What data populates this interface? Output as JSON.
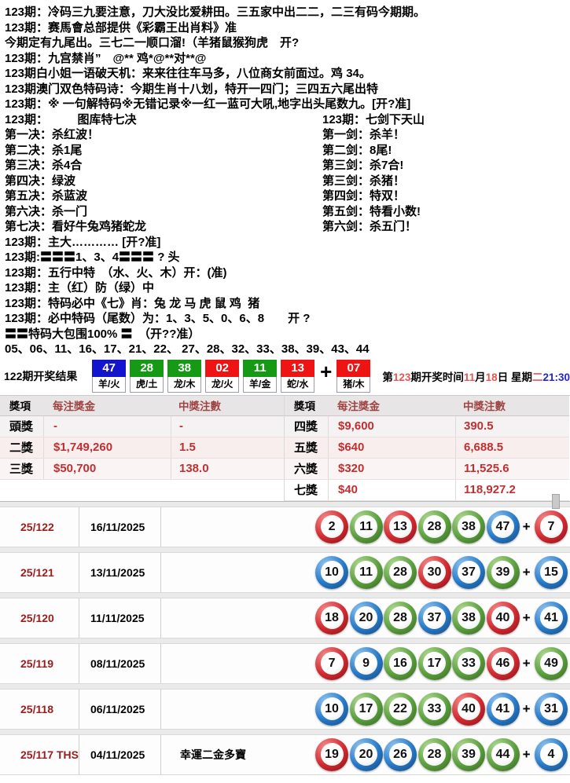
{
  "colors": {
    "box-blue": "#1414cf",
    "box-green": "#169a16",
    "box-red": "#ee1414",
    "ball-red": "#d02a30",
    "ball-green": "#5a9e3e",
    "ball-blue": "#2679c8",
    "accent-red": "#c03030",
    "dark-red": "#9b1c1c",
    "link-blue": "#2323dd",
    "hl-red": "#e85555"
  },
  "tips": {
    "lines_top": [
      "123期：冷码三九要注意，刀大没比爱耕田。三五家中出二二，二三有码今期期。",
      "123期：赛馬會总部提供《彩霸王出肖料》准",
      "今期定有九尾出。三七二一顺口溜!（羊猪鼠猴狗虎　开?",
      "123期：九宫禁肖”　@** 鸡*@**对**@",
      "123期白小姐一语破天机：来来往往车马多，八位商女前面过。鸡 34。",
      "123期澳门双色特码诗：今期生肖十八划，特开一四门；三四五六尾出特",
      "123期：※ 一句解特码※无错记录※一红一蓝可大吼,地字出头尾数九。[开?准]"
    ],
    "two_col": [
      {
        "left": "123期：　　　图库特七决",
        "right": "123期：七剑下天山"
      },
      {
        "left": "第一决：杀红波！",
        "right": "第一剑：杀羊！"
      },
      {
        "left": "第二决：杀1尾",
        "right": "第二剑：8尾!"
      },
      {
        "left": "第三决：杀4合",
        "right": "第三剑：杀7合!"
      },
      {
        "left": "第四决：绿波",
        "right": "第三剑：杀猪！"
      },
      {
        "left": "第五决：杀蓝波",
        "right": "第四剑：特双！"
      },
      {
        "left": "第六决：杀一门",
        "right": "第五剑：特看小数!"
      },
      {
        "left": "第七决：看好牛兔鸡猪蛇龙",
        "right": "第六剑：杀五门！"
      }
    ],
    "lines_bottom": [
      "123期：主大………… [开?准]",
      "123期:〓〓〓1、3、4〓〓〓 ? 头",
      "123期：五行中特　（水、火、木）开：(准)",
      "123期：主（红）防（绿）中",
      "123期：特码必中《七》肖：兔 龙 马 虎 鼠 鸡  猪",
      "123期：必中特码（尾数）为：1、3、5、0、6、8　　开 ?",
      "〓〓特码大包围100% 〓　（开??准）",
      "05、06、11、16、17、21、22、 27、28、32、33、38、39、43、44"
    ]
  },
  "result_bar": {
    "label": "122期开奖结果",
    "balls": [
      {
        "num": "47",
        "color": "blue",
        "info": "羊/火"
      },
      {
        "num": "28",
        "color": "green",
        "info": "虎/土"
      },
      {
        "num": "38",
        "color": "green",
        "info": "龙/木"
      },
      {
        "num": "02",
        "color": "red",
        "info": "龙/火"
      },
      {
        "num": "11",
        "color": "green",
        "info": "羊/金"
      },
      {
        "num": "13",
        "color": "red",
        "info": "蛇/水"
      }
    ],
    "plus": "+",
    "special": {
      "num": "07",
      "color": "red",
      "info": "猪/木"
    },
    "next_draw": [
      {
        "t": "第",
        "c": "k"
      },
      {
        "t": "123",
        "c": "r"
      },
      {
        "t": "期开奖时间",
        "c": "k"
      },
      {
        "t": "11",
        "c": "r"
      },
      {
        "t": "月",
        "c": "k"
      },
      {
        "t": "18",
        "c": "r"
      },
      {
        "t": "日 星期",
        "c": "k"
      },
      {
        "t": "二",
        "c": "r"
      },
      {
        "t": "21:30",
        "c": "b"
      }
    ]
  },
  "prize_tables": [
    {
      "headers": [
        "獎項",
        "每注獎金",
        "中獎注數"
      ],
      "rows": [
        {
          "tier": "頭獎",
          "amount": "-",
          "units": "-"
        },
        {
          "tier": "二獎",
          "amount": "$1,749,260",
          "units": "1.5"
        },
        {
          "tier": "三獎",
          "amount": "$50,700",
          "units": "138.0"
        }
      ]
    },
    {
      "headers": [
        "獎項",
        "每注獎金",
        "中獎注數"
      ],
      "rows": [
        {
          "tier": "四獎",
          "amount": "$9,600",
          "units": "390.5"
        },
        {
          "tier": "五獎",
          "amount": "$640",
          "units": "6,688.5"
        },
        {
          "tier": "六獎",
          "amount": "$320",
          "units": "11,525.6"
        },
        {
          "tier": "七獎",
          "amount": "$40",
          "units": "118,927.2"
        }
      ]
    }
  ],
  "history": {
    "plus": "+",
    "rows": [
      {
        "period": "25/122",
        "date": "16/11/2025",
        "note": "",
        "balls": [
          {
            "n": "2",
            "c": "red"
          },
          {
            "n": "11",
            "c": "green"
          },
          {
            "n": "13",
            "c": "red"
          },
          {
            "n": "28",
            "c": "green"
          },
          {
            "n": "38",
            "c": "green"
          },
          {
            "n": "47",
            "c": "blue"
          }
        ],
        "special": {
          "n": "7",
          "c": "red"
        }
      },
      {
        "period": "25/121",
        "date": "13/11/2025",
        "note": "",
        "balls": [
          {
            "n": "10",
            "c": "blue"
          },
          {
            "n": "11",
            "c": "green"
          },
          {
            "n": "28",
            "c": "green"
          },
          {
            "n": "30",
            "c": "red"
          },
          {
            "n": "37",
            "c": "blue"
          },
          {
            "n": "39",
            "c": "green"
          }
        ],
        "special": {
          "n": "15",
          "c": "blue"
        }
      },
      {
        "period": "25/120",
        "date": "11/11/2025",
        "note": "",
        "balls": [
          {
            "n": "18",
            "c": "red"
          },
          {
            "n": "20",
            "c": "blue"
          },
          {
            "n": "28",
            "c": "green"
          },
          {
            "n": "37",
            "c": "blue"
          },
          {
            "n": "38",
            "c": "green"
          },
          {
            "n": "40",
            "c": "red"
          }
        ],
        "special": {
          "n": "41",
          "c": "blue"
        }
      },
      {
        "period": "25/119",
        "date": "08/11/2025",
        "note": "",
        "balls": [
          {
            "n": "7",
            "c": "red"
          },
          {
            "n": "9",
            "c": "blue"
          },
          {
            "n": "16",
            "c": "green"
          },
          {
            "n": "17",
            "c": "green"
          },
          {
            "n": "33",
            "c": "green"
          },
          {
            "n": "46",
            "c": "red"
          }
        ],
        "special": {
          "n": "49",
          "c": "green"
        }
      },
      {
        "period": "25/118",
        "date": "06/11/2025",
        "note": "",
        "balls": [
          {
            "n": "10",
            "c": "blue"
          },
          {
            "n": "17",
            "c": "green"
          },
          {
            "n": "22",
            "c": "green"
          },
          {
            "n": "33",
            "c": "green"
          },
          {
            "n": "40",
            "c": "red"
          },
          {
            "n": "41",
            "c": "blue"
          }
        ],
        "special": {
          "n": "31",
          "c": "blue"
        }
      },
      {
        "period": "25/117 THS",
        "date": "04/11/2025",
        "note": "幸運二金多寶",
        "balls": [
          {
            "n": "19",
            "c": "red"
          },
          {
            "n": "20",
            "c": "blue"
          },
          {
            "n": "26",
            "c": "blue"
          },
          {
            "n": "28",
            "c": "green"
          },
          {
            "n": "39",
            "c": "green"
          },
          {
            "n": "44",
            "c": "green"
          }
        ],
        "special": {
          "n": "4",
          "c": "blue"
        }
      }
    ]
  }
}
